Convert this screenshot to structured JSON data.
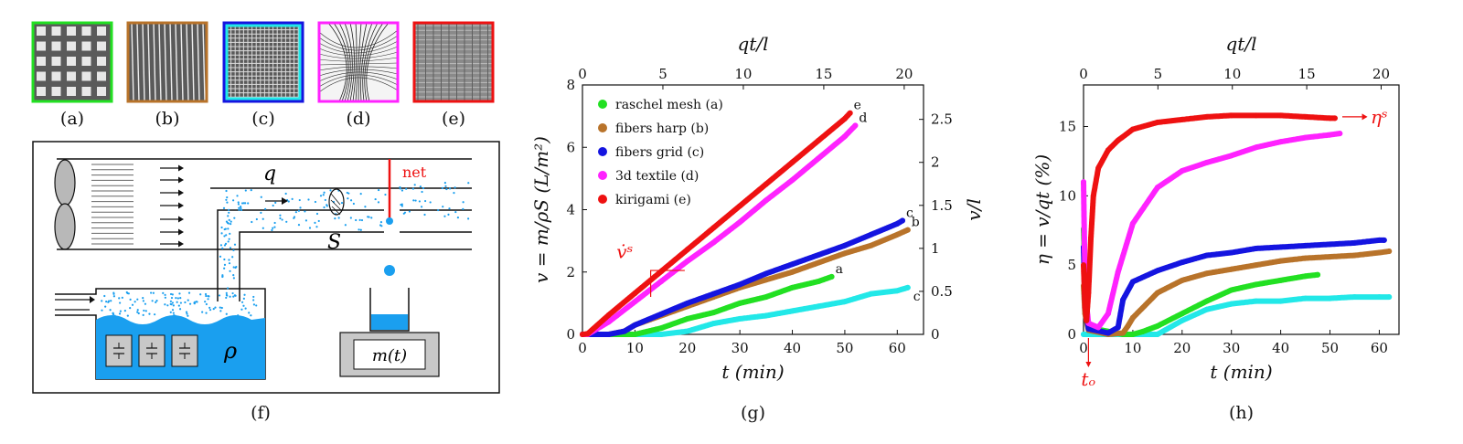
{
  "colors": {
    "raschel": "#22e022",
    "harp": "#b8732a",
    "grid": "#1414e0",
    "textile": "#ff22ff",
    "kirigami": "#ee1111",
    "cyan": "#22e8e8",
    "water": "#1a9fef",
    "red": "#ee1111"
  },
  "samples": [
    {
      "label": "(a)",
      "color": "#22e022",
      "icon": "raschel-mesh-texture"
    },
    {
      "label": "(b)",
      "color": "#b8732a",
      "icon": "fibers-harp-texture"
    },
    {
      "label": "(c)",
      "color": "#1414e0",
      "inner_color": "#22e8e8",
      "icon": "fibers-grid-texture"
    },
    {
      "label": "(d)",
      "color": "#ff22ff",
      "icon": "3d-textile-texture"
    },
    {
      "label": "(e)",
      "color": "#ee1111",
      "icon": "kirigami-texture"
    }
  ],
  "schematic": {
    "label": "(f)",
    "q": "q",
    "S": "S",
    "net": "net",
    "rho": "ρ",
    "mass": "m(t)"
  },
  "chart_data": [
    {
      "type": "scatter",
      "panel": "(g)",
      "xlabel": "t (min)",
      "ylabel": "v = m/ρS (L/m²)",
      "top_xlabel": "qt/l",
      "right_ylabel": "v/l",
      "xlim": [
        0,
        65
      ],
      "ylim": [
        0,
        8
      ],
      "xticks": [
        0,
        10,
        20,
        30,
        40,
        50,
        60
      ],
      "yticks": [
        0,
        2,
        4,
        6,
        8
      ],
      "top_xticks": [
        0,
        5,
        10,
        15,
        20
      ],
      "top_xlim": [
        0,
        21.2
      ],
      "right_yticks": [
        "0",
        "0.5",
        "1",
        "1.5",
        "2",
        "2.5"
      ],
      "right_yvalues": [
        0,
        0.5,
        1,
        1.5,
        2,
        2.5
      ],
      "right_ylim": [
        0,
        2.9
      ],
      "legend_position": "top-left",
      "series": [
        {
          "name": "raschel mesh (a)",
          "color": "#22e022",
          "tag": "a",
          "x": [
            0,
            10,
            15,
            20,
            25,
            30,
            35,
            40,
            45,
            47.5
          ],
          "y": [
            0,
            0,
            0.2,
            0.5,
            0.7,
            1.0,
            1.2,
            1.5,
            1.7,
            1.85
          ]
        },
        {
          "name": "fibers harp (b)",
          "color": "#b8732a",
          "tag": "b",
          "x": [
            0,
            5,
            8,
            10,
            15,
            20,
            25,
            30,
            35,
            40,
            45,
            50,
            55,
            60,
            62
          ],
          "y": [
            0,
            0,
            0.1,
            0.3,
            0.6,
            0.9,
            1.2,
            1.5,
            1.75,
            2.0,
            2.3,
            2.6,
            2.85,
            3.2,
            3.35
          ]
        },
        {
          "name": "fibers grid (c)",
          "color": "#1414e0",
          "tag": "c",
          "x": [
            0,
            5,
            8,
            10,
            15,
            20,
            25,
            30,
            35,
            40,
            45,
            50,
            55,
            60,
            61
          ],
          "y": [
            0,
            0,
            0.1,
            0.3,
            0.65,
            1.0,
            1.3,
            1.6,
            1.95,
            2.25,
            2.55,
            2.85,
            3.2,
            3.55,
            3.65
          ]
        },
        {
          "name": "3d textile (d)",
          "color": "#ff22ff",
          "tag": "d",
          "x": [
            0,
            1,
            3,
            5,
            10,
            15,
            20,
            25,
            30,
            35,
            40,
            45,
            50,
            52
          ],
          "y": [
            0,
            0,
            0.2,
            0.4,
            1.05,
            1.7,
            2.35,
            2.95,
            3.6,
            4.3,
            4.95,
            5.65,
            6.35,
            6.7
          ]
        },
        {
          "name": "kirigami (e)",
          "color": "#ee1111",
          "tag": "e",
          "x": [
            0,
            1,
            5,
            10,
            15,
            20,
            25,
            30,
            35,
            40,
            45,
            50,
            51
          ],
          "y": [
            0,
            0.02,
            0.62,
            1.32,
            2.02,
            2.72,
            3.42,
            4.12,
            4.82,
            5.52,
            6.22,
            6.92,
            7.1
          ]
        },
        {
          "name": "",
          "color": "#22e8e8",
          "tag": "c",
          "x": [
            0,
            15,
            20,
            25,
            30,
            35,
            40,
            45,
            50,
            55,
            60,
            62
          ],
          "y": [
            0,
            0,
            0.1,
            0.35,
            0.5,
            0.6,
            0.75,
            0.9,
            1.05,
            1.3,
            1.4,
            1.5
          ]
        }
      ],
      "annotation": "v̇ˢ"
    },
    {
      "type": "scatter",
      "panel": "(h)",
      "xlabel": "t (min)",
      "ylabel": "η = v/qt (%)",
      "top_xlabel": "qt/l",
      "xlim": [
        0,
        64
      ],
      "ylim": [
        0,
        18
      ],
      "xticks": [
        0,
        10,
        20,
        30,
        40,
        50,
        60
      ],
      "yticks": [
        0,
        5,
        10,
        15
      ],
      "top_xticks": [
        0,
        5,
        10,
        15,
        20
      ],
      "top_xlim": [
        0,
        21.2
      ],
      "series": [
        {
          "name": "raschel mesh (a)",
          "color": "#22e022",
          "x": [
            0,
            0.2,
            0.5,
            1,
            8,
            10,
            12,
            15,
            20,
            25,
            30,
            35,
            40,
            45,
            47.5
          ],
          "y": [
            7.6,
            5.5,
            2.5,
            0.5,
            0,
            0,
            0.2,
            0.6,
            1.5,
            2.4,
            3.2,
            3.6,
            3.9,
            4.2,
            4.3
          ]
        },
        {
          "name": "fibers harp (b)",
          "color": "#b8732a",
          "x": [
            0,
            0.3,
            1,
            5,
            8,
            9,
            10,
            15,
            20,
            25,
            30,
            35,
            40,
            45,
            50,
            55,
            60,
            62
          ],
          "y": [
            3.5,
            1.5,
            0.3,
            0,
            0.1,
            0.6,
            1.2,
            3.0,
            3.9,
            4.4,
            4.7,
            5.0,
            5.3,
            5.5,
            5.6,
            5.7,
            5.9,
            6.0
          ]
        },
        {
          "name": "fibers grid (c)",
          "color": "#1414e0",
          "x": [
            0,
            0.3,
            1,
            5,
            7,
            8,
            10,
            15,
            20,
            25,
            30,
            35,
            40,
            45,
            50,
            55,
            60,
            61
          ],
          "y": [
            6.3,
            2.0,
            0.4,
            0.1,
            0.5,
            2.5,
            3.8,
            4.6,
            5.2,
            5.7,
            5.9,
            6.2,
            6.3,
            6.4,
            6.5,
            6.6,
            6.8,
            6.8
          ]
        },
        {
          "name": "3d textile (d)",
          "color": "#ff22ff",
          "x": [
            0,
            0.2,
            0.5,
            1,
            3,
            5,
            7,
            10,
            15,
            20,
            25,
            30,
            35,
            40,
            45,
            50,
            52
          ],
          "y": [
            11,
            6,
            2.5,
            0.8,
            0.5,
            1.5,
            4.5,
            8.0,
            10.6,
            11.8,
            12.4,
            12.9,
            13.5,
            13.9,
            14.2,
            14.4,
            14.5
          ]
        },
        {
          "name": "kirigami (e)",
          "color": "#ee1111",
          "x": [
            0,
            0.3,
            0.6,
            1,
            1.5,
            2,
            3,
            5,
            7,
            10,
            15,
            20,
            25,
            30,
            35,
            40,
            45,
            50,
            51
          ],
          "y": [
            5,
            2,
            1,
            3,
            7,
            10,
            12,
            13.3,
            14.0,
            14.8,
            15.3,
            15.5,
            15.7,
            15.8,
            15.8,
            15.8,
            15.7,
            15.6,
            15.6
          ]
        },
        {
          "name": "",
          "color": "#22e8e8",
          "x": [
            0,
            15,
            20,
            25,
            30,
            35,
            40,
            45,
            50,
            55,
            60,
            62
          ],
          "y": [
            0,
            0,
            1.0,
            1.8,
            2.2,
            2.4,
            2.4,
            2.6,
            2.6,
            2.7,
            2.7,
            2.7
          ]
        }
      ],
      "annotation_right": "ηˢ",
      "annotation_bottom": "tₒ"
    }
  ]
}
